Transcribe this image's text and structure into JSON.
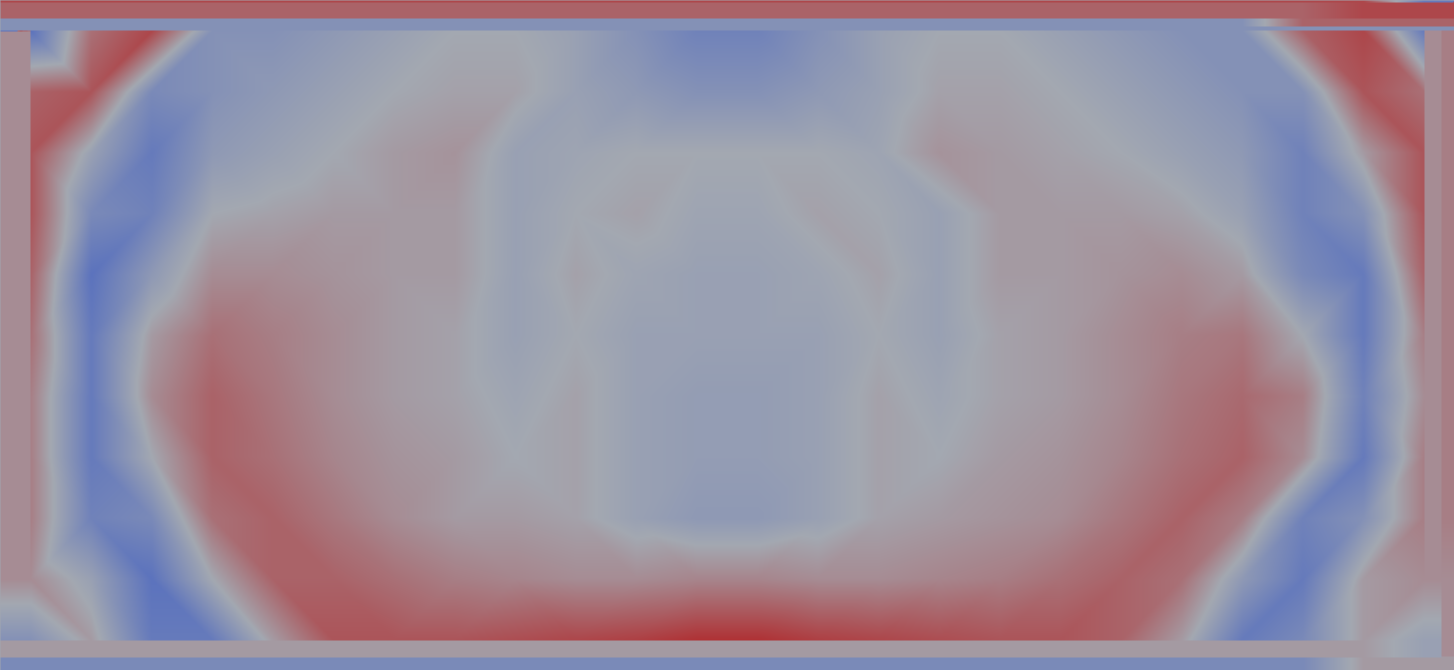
{
  "chart_data": {
    "type": "heatmap",
    "tick_labels": false,
    "color_range": [
      -1,
      1
    ],
    "cells": [
      [
        -0.7,
        0.4,
        0.7,
        -0.3,
        -0.3,
        -0.2,
        -0.1,
        0,
        0,
        -0.1,
        -0.3,
        -0.5,
        -0.5,
        -0.3,
        -0.1,
        0,
        0,
        -0.1,
        -0.2,
        -0.3,
        -0.3,
        0.5,
        0.7,
        -0.6
      ],
      [
        0.5,
        0.6,
        -0.4,
        -0.3,
        -0.2,
        -0.1,
        0,
        0.05,
        0.05,
        -0.1,
        -0.2,
        -0.3,
        -0.3,
        -0.2,
        -0.1,
        0.05,
        0.05,
        0,
        -0.1,
        -0.2,
        -0.3,
        -0.3,
        0.6,
        0.4
      ],
      [
        0.6,
        -0.1,
        -0.6,
        -0.2,
        -0.1,
        0,
        0.1,
        0.15,
        -0.1,
        -0.05,
        0,
        0,
        0,
        0,
        -0.05,
        0.15,
        0.1,
        0.05,
        0,
        -0.1,
        -0.2,
        -0.5,
        0.1,
        0.6
      ],
      [
        0.6,
        -0.4,
        -0.5,
        0,
        0.05,
        0.1,
        0.1,
        0.1,
        -0.1,
        0,
        0.05,
        -0.05,
        -0.05,
        0.05,
        0,
        -0.1,
        0.1,
        0.1,
        0.1,
        0.05,
        -0.1,
        -0.5,
        -0.3,
        0.6
      ],
      [
        0.5,
        -0.7,
        -0.2,
        0.2,
        0.2,
        0.15,
        0.1,
        0.1,
        -0.1,
        0.05,
        -0.05,
        -0.1,
        -0.1,
        -0.05,
        0.05,
        -0.1,
        0.1,
        0.1,
        0.15,
        0.2,
        0.1,
        -0.4,
        -0.6,
        0.5
      ],
      [
        0.4,
        -0.6,
        0.1,
        0.4,
        0.3,
        0.2,
        0.1,
        0.05,
        -0.1,
        0,
        -0.1,
        -0.1,
        -0.1,
        -0.1,
        0,
        -0.1,
        0.05,
        0.1,
        0.2,
        0.3,
        0.35,
        0,
        -0.6,
        0.3
      ],
      [
        0.3,
        -0.6,
        0.2,
        0.5,
        0.35,
        0.2,
        0.1,
        0.05,
        -0.05,
        0.05,
        -0.1,
        -0.15,
        -0.15,
        -0.1,
        0.05,
        -0.05,
        0.05,
        0.1,
        0.2,
        0.35,
        0.45,
        0.3,
        -0.5,
        0.2
      ],
      [
        0.3,
        -0.6,
        0,
        0.5,
        0.4,
        0.25,
        0.15,
        0.1,
        0,
        0.05,
        -0.1,
        -0.15,
        -0.15,
        -0.1,
        0.05,
        0,
        0.1,
        0.15,
        0.25,
        0.4,
        0.5,
        0.2,
        -0.6,
        0.3
      ],
      [
        0.3,
        -0.5,
        -0.4,
        0.4,
        0.5,
        0.35,
        0.2,
        0.1,
        0.1,
        0.05,
        -0.1,
        -0.2,
        -0.2,
        -0.1,
        0.05,
        0.1,
        0.15,
        0.2,
        0.35,
        0.5,
        0.3,
        -0.5,
        -0.3,
        0.3
      ],
      [
        0.2,
        -0.1,
        -0.7,
        0,
        0.5,
        0.5,
        0.4,
        0.3,
        0.25,
        0.2,
        0.2,
        0.25,
        0.25,
        0.2,
        0.2,
        0.25,
        0.3,
        0.4,
        0.5,
        0.4,
        -0.2,
        -0.6,
        0.1,
        0.2
      ],
      [
        -0.3,
        0.1,
        -0.6,
        -0.6,
        0.1,
        0.6,
        0.6,
        0.6,
        0.65,
        0.7,
        0.75,
        0.85,
        0.85,
        0.75,
        0.7,
        0.65,
        0.6,
        0.6,
        0.5,
        0.1,
        -0.6,
        -0.4,
        0.1,
        -0.1
      ]
    ]
  }
}
